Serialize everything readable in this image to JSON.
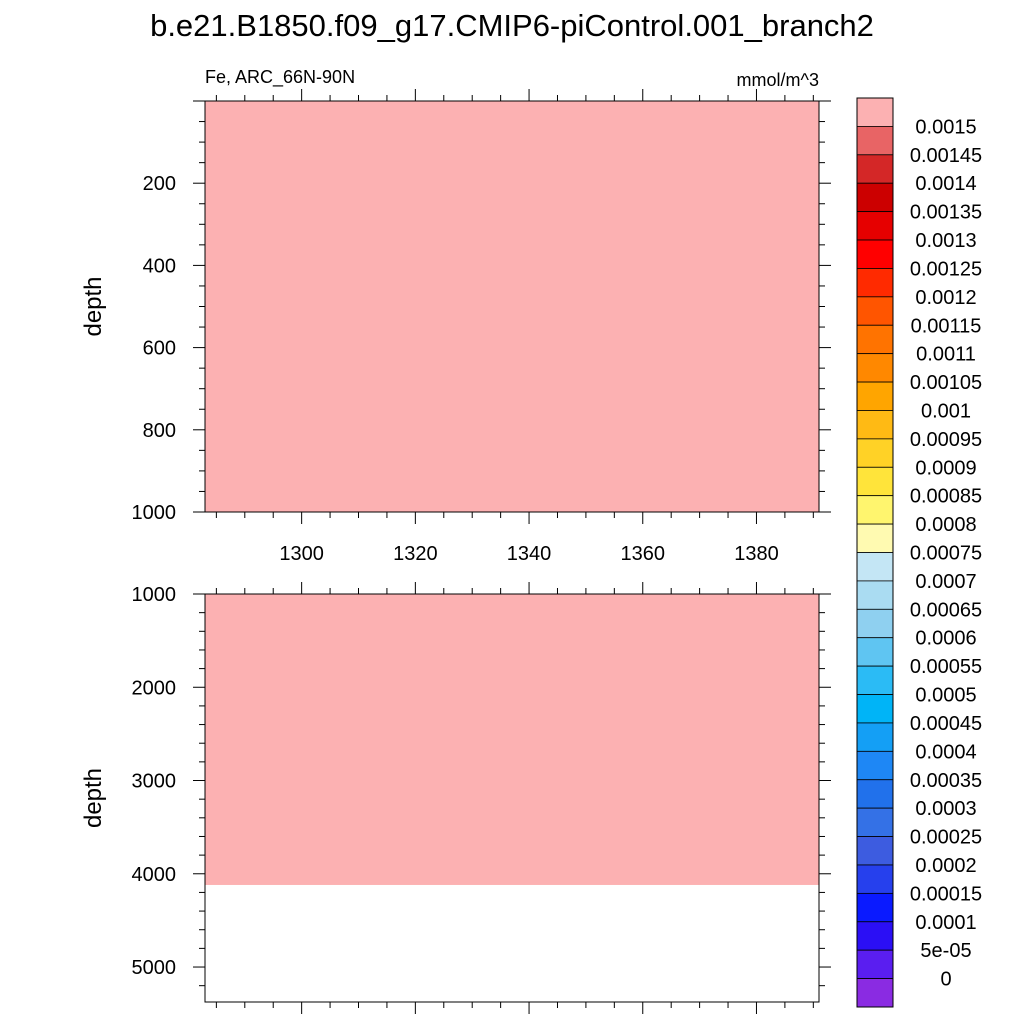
{
  "chart_data": {
    "type": "heatmap",
    "title": "b.e21.B1850.f09_g17.CMIP6-piControl.001_branch2",
    "subtitle_left": "Fe, ARC_66N-90N",
    "subtitle_right": "mmol/m^3",
    "colorbar": {
      "labels": [
        "0.0015",
        "0.00145",
        "0.0014",
        "0.00135",
        "0.0013",
        "0.00125",
        "0.0012",
        "0.00115",
        "0.0011",
        "0.00105",
        "0.001",
        "0.00095",
        "0.0009",
        "0.00085",
        "0.0008",
        "0.00075",
        "0.0007",
        "0.00065",
        "0.0006",
        "0.00055",
        "0.0005",
        "0.00045",
        "0.0004",
        "0.00035",
        "0.0003",
        "0.00025",
        "0.0002",
        "0.00015",
        "0.0001",
        "5e-05",
        "0"
      ],
      "colors": [
        "#fcb1b2",
        "#e86465",
        "#d42727",
        "#cc0000",
        "#e60000",
        "#ff0000",
        "#ff2a00",
        "#ff5500",
        "#ff7300",
        "#ff8800",
        "#ffa500",
        "#ffba14",
        "#ffd226",
        "#ffe43a",
        "#fff56e",
        "#fffab1",
        "#c4e6f5",
        "#aadcf2",
        "#8fd0f0",
        "#5fc5f2",
        "#2bbbf5",
        "#00b4f7",
        "#149ff5",
        "#1e87f5",
        "#2171eb",
        "#3471e6",
        "#3d5ce0",
        "#2640ed",
        "#0a1aff",
        "#2b0ff5",
        "#5a1ef0",
        "#8a2be2"
      ]
    },
    "panels": [
      {
        "ylabel": "depth",
        "ylim": [
          0,
          1000
        ],
        "yticks": [
          200,
          400,
          600,
          800,
          1000
        ],
        "xlim": [
          1283,
          1391
        ],
        "xticks": [
          1300,
          1320,
          1340,
          1360,
          1380
        ],
        "fill_value": 0.0015,
        "fill_to_depth": 1000
      },
      {
        "ylabel": "depth",
        "ylim": [
          1000,
          5375
        ],
        "yticks": [
          1000,
          2000,
          3000,
          4000,
          5000
        ],
        "xlim": [
          1283,
          1391
        ],
        "fill_value": 0.0015,
        "fill_to_depth": 4120
      }
    ]
  }
}
